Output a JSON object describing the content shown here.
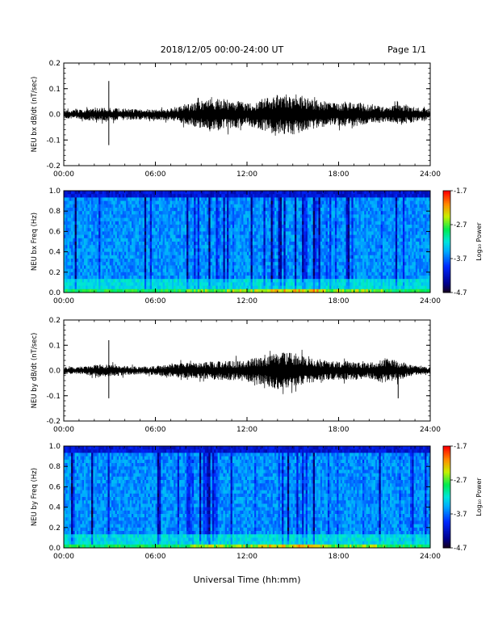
{
  "header": {
    "title": "2018/12/05  00:00-24:00 UT",
    "page": "Page 1/1"
  },
  "footer": {
    "xlabel": "Universal Time (hh:mm)"
  },
  "chart_data": [
    {
      "type": "line",
      "ylabel": "NEU bx dB/dt (nT/sec)",
      "xlim": [
        "00:00",
        "24:00"
      ],
      "xticks": [
        "00:00",
        "06:00",
        "12:00",
        "18:00",
        "24:00"
      ],
      "ylim": [
        -0.2,
        0.2
      ],
      "yticks": [
        "0.2",
        "0.1",
        "0.0",
        "-0.1",
        "-0.2"
      ],
      "envelope_hours": [
        0,
        1,
        2,
        3,
        4,
        5,
        6,
        7,
        8,
        9,
        10,
        11,
        12,
        13,
        14,
        15,
        16,
        17,
        18,
        19,
        20,
        21,
        22,
        23,
        24
      ],
      "envelope_amplitude": [
        0.012,
        0.015,
        0.022,
        0.02,
        0.018,
        0.016,
        0.017,
        0.02,
        0.03,
        0.045,
        0.05,
        0.045,
        0.035,
        0.05,
        0.06,
        0.065,
        0.055,
        0.04,
        0.035,
        0.04,
        0.03,
        0.025,
        0.03,
        0.025,
        0.015
      ],
      "spikes": [
        {
          "hour": 2.95,
          "max": 0.13,
          "min": -0.12
        }
      ]
    },
    {
      "type": "heatmap",
      "ylabel": "NEU bx Freq (Hz)",
      "xlim": [
        "00:00",
        "24:00"
      ],
      "xticks": [
        "00:00",
        "06:00",
        "12:00",
        "18:00",
        "24:00"
      ],
      "ylim": [
        0.0,
        1.0
      ],
      "yticks": [
        "1.0",
        "0.8",
        "0.6",
        "0.4",
        "0.2",
        "0.0"
      ],
      "colorbar": {
        "label": "Log₁₀ Power",
        "range": [
          -4.7,
          -1.7
        ],
        "ticks": [
          "-1.7",
          "-2.7",
          "-3.7",
          "-4.7"
        ]
      }
    },
    {
      "type": "line",
      "ylabel": "NEU by dB/dt (nT/sec)",
      "xlim": [
        "00:00",
        "24:00"
      ],
      "xticks": [
        "00:00",
        "06:00",
        "12:00",
        "18:00",
        "24:00"
      ],
      "ylim": [
        -0.2,
        0.2
      ],
      "yticks": [
        "0.2",
        "0.1",
        "0.0",
        "-0.1",
        "-0.2"
      ],
      "envelope_hours": [
        0,
        1,
        2,
        3,
        4,
        5,
        6,
        7,
        8,
        9,
        10,
        11,
        12,
        13,
        14,
        15,
        16,
        17,
        18,
        19,
        20,
        21,
        22,
        23,
        24
      ],
      "envelope_amplitude": [
        0.012,
        0.012,
        0.018,
        0.02,
        0.015,
        0.012,
        0.015,
        0.02,
        0.025,
        0.025,
        0.03,
        0.03,
        0.035,
        0.045,
        0.06,
        0.055,
        0.04,
        0.035,
        0.03,
        0.03,
        0.025,
        0.04,
        0.03,
        0.015,
        0.01
      ],
      "spikes": [
        {
          "hour": 2.95,
          "max": 0.12,
          "min": -0.11
        },
        {
          "hour": 21.9,
          "max": 0.02,
          "min": -0.11
        }
      ]
    },
    {
      "type": "heatmap",
      "ylabel": "NEU by Freq (Hz)",
      "xlim": [
        "00:00",
        "24:00"
      ],
      "xticks": [
        "00:00",
        "06:00",
        "12:00",
        "18:00",
        "24:00"
      ],
      "ylim": [
        0.0,
        1.0
      ],
      "yticks": [
        "1.0",
        "0.8",
        "0.6",
        "0.4",
        "0.2",
        "0.0"
      ],
      "colorbar": {
        "label": "Log₁₀ Power",
        "range": [
          -4.7,
          -1.7
        ],
        "ticks": [
          "-1.7",
          "-2.7",
          "-3.7",
          "-4.7"
        ]
      }
    }
  ]
}
